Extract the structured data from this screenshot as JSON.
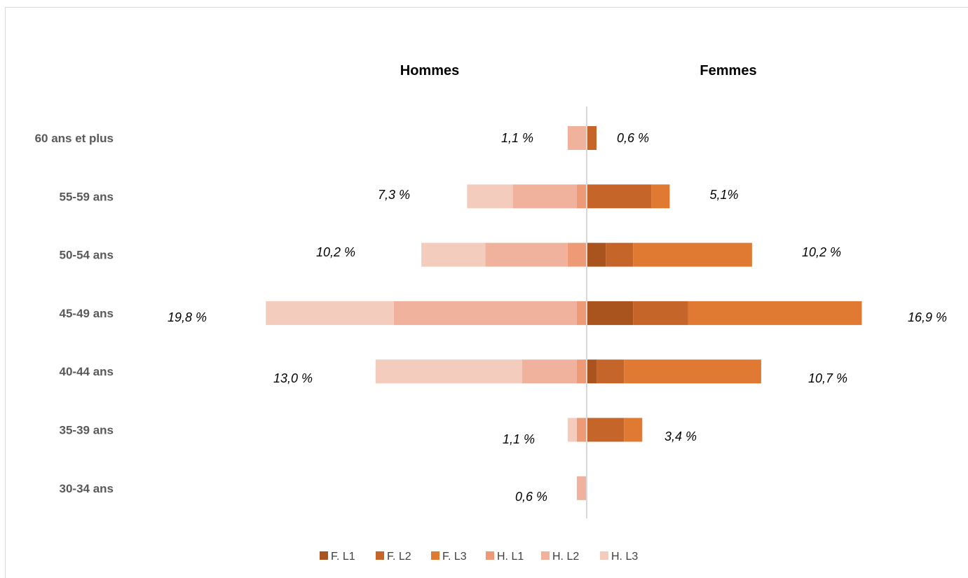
{
  "chart_data": {
    "type": "bar",
    "orientation": "horizontal",
    "layout": "population-pyramid",
    "side_headers": {
      "left": "Hommes",
      "right": "Femmes"
    },
    "categories": [
      "60 ans et plus",
      "55-59 ans",
      "50-54 ans",
      "45-49 ans",
      "40-44 ans",
      "35-39 ans",
      "30-34 ans"
    ],
    "series": [
      {
        "name": "F. L1",
        "side": "right",
        "color": "#A9531F",
        "values": [
          0,
          0,
          1.0,
          2.5,
          0.5,
          0,
          0
        ]
      },
      {
        "name": "F. L2",
        "side": "right",
        "color": "#C6652A",
        "values": [
          0.5,
          3.5,
          1.5,
          3.0,
          1.5,
          2.0,
          0
        ]
      },
      {
        "name": "F. L3",
        "side": "right",
        "color": "#E07A32",
        "values": [
          0,
          1.0,
          6.5,
          9.5,
          7.5,
          1.0,
          0
        ]
      },
      {
        "name": "H. L1",
        "side": "left",
        "color": "#EE9A76",
        "values": [
          0,
          0.5,
          1.0,
          0.5,
          0.5,
          0.5,
          0
        ]
      },
      {
        "name": "H. L2",
        "side": "left",
        "color": "#F1B29D",
        "values": [
          1.0,
          3.5,
          4.5,
          10.0,
          3.0,
          0,
          0.5
        ]
      },
      {
        "name": "H. L3",
        "side": "left",
        "color": "#F4CCBE",
        "values": [
          0,
          2.5,
          3.5,
          7.0,
          8.0,
          0.5,
          0
        ]
      }
    ],
    "data_labels": {
      "left": [
        "1,1 %",
        "7,3 %",
        "10,2 %",
        "19,8 %",
        "13,0 %",
        "1,1 %",
        "0,6 %"
      ],
      "right": [
        "0,6 %",
        "5,1%",
        "10,2 %",
        "16,9 %",
        "10,7 %",
        "3,4 %",
        ""
      ]
    },
    "legend_position": "bottom",
    "grid": false
  }
}
